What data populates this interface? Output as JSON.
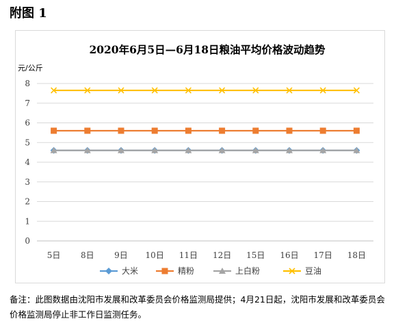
{
  "figure_label": "附图 1",
  "note": "备注：此图数据由沈阳市发展和改革委员会价格监测局提供；4月21日起，沈阳市发展和改革委员会价格监测局停止非工作日监测任务。",
  "chart_data": {
    "type": "line",
    "title": "2020年6月5日—6月18日粮油平均价格波动趋势",
    "ylabel": "元/公斤",
    "xlabel": "",
    "categories": [
      "5日",
      "8日",
      "9日",
      "10日",
      "11日",
      "12日",
      "15日",
      "16日",
      "17日",
      "18日"
    ],
    "ylim": [
      0,
      8
    ],
    "yticks": [
      0,
      1,
      2,
      3,
      4,
      5,
      6,
      7,
      8
    ],
    "grid": true,
    "legend_position": "bottom",
    "series": [
      {
        "name": "大米",
        "marker": "diamond",
        "color": "#5b9bd5",
        "values": [
          4.6,
          4.6,
          4.6,
          4.6,
          4.6,
          4.6,
          4.6,
          4.6,
          4.6,
          4.6
        ]
      },
      {
        "name": "精粉",
        "marker": "square",
        "color": "#ed7d31",
        "values": [
          5.6,
          5.6,
          5.6,
          5.6,
          5.6,
          5.6,
          5.6,
          5.6,
          5.6,
          5.6
        ]
      },
      {
        "name": "上白粉",
        "marker": "triangle",
        "color": "#a5a5a5",
        "values": [
          4.6,
          4.6,
          4.6,
          4.6,
          4.6,
          4.6,
          4.6,
          4.6,
          4.6,
          4.6
        ]
      },
      {
        "name": "豆油",
        "marker": "x",
        "color": "#ffc000",
        "values": [
          7.65,
          7.65,
          7.65,
          7.65,
          7.65,
          7.65,
          7.65,
          7.65,
          7.65,
          7.65
        ]
      }
    ]
  }
}
